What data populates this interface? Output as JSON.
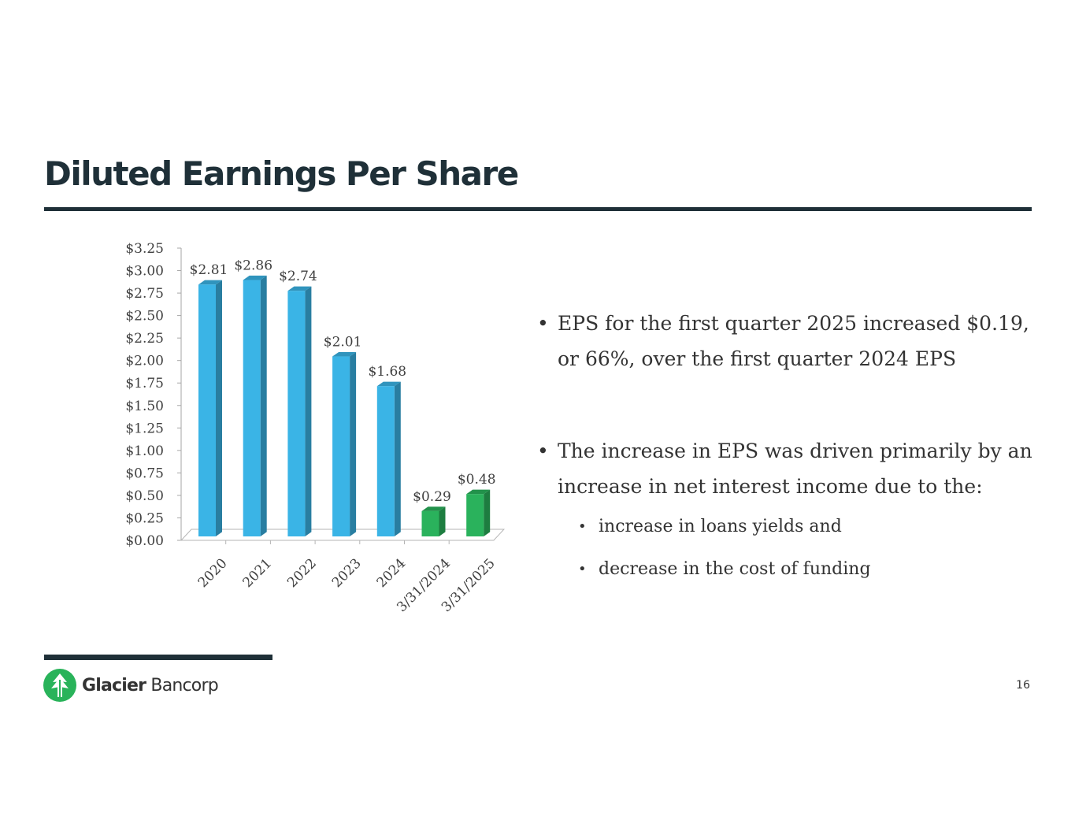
{
  "title": "Diluted Earnings Per Share",
  "colors": {
    "accent_dark": "#1f3038",
    "bar_blue": "#3ab4e6",
    "bar_green": "#2ab25c",
    "logo_green": "#29b35a"
  },
  "chart_data": {
    "type": "bar",
    "categories": [
      "2020",
      "2021",
      "2022",
      "2023",
      "2024",
      "3/31/2024",
      "3/31/2025"
    ],
    "values": [
      2.81,
      2.86,
      2.74,
      2.01,
      1.68,
      0.29,
      0.48
    ],
    "value_labels": [
      "$2.81",
      "$2.86",
      "$2.74",
      "$2.01",
      "$1.68",
      "$0.29",
      "$0.48"
    ],
    "bar_colors": [
      "#3ab4e6",
      "#3ab4e6",
      "#3ab4e6",
      "#3ab4e6",
      "#3ab4e6",
      "#2ab25c",
      "#2ab25c"
    ],
    "ylim": [
      0,
      3.25
    ],
    "yticks": [
      "$0.00",
      "$0.25",
      "$0.50",
      "$0.75",
      "$1.00",
      "$1.25",
      "$1.50",
      "$1.75",
      "$2.00",
      "$2.25",
      "$2.50",
      "$2.75",
      "$3.00",
      "$3.25"
    ],
    "grid": false,
    "legend": "none",
    "title": "",
    "xlabel": "",
    "ylabel": ""
  },
  "bullets": [
    {
      "text": "EPS for the first quarter 2025 increased $0.19, or 66%, over the first quarter 2024 EPS"
    },
    {
      "text": "The increase in EPS was driven primarily by an increase in net interest income due to the:",
      "sub": [
        "increase in loans yields and",
        "decrease in the cost of funding"
      ]
    }
  ],
  "footer": {
    "logo_bold": "Glacier",
    "logo_light": " Bancorp",
    "logo_icon": "tree-icon",
    "page_number": "16"
  }
}
